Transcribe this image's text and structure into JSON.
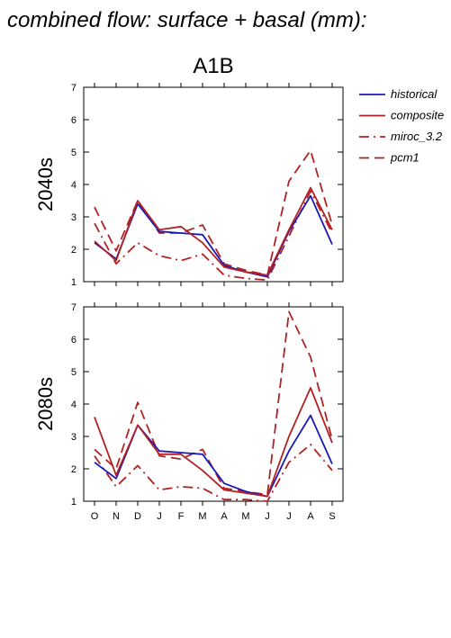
{
  "title": "combined flow: surface + basal (mm):",
  "subtitle": "A1B",
  "months": [
    "O",
    "N",
    "D",
    "J",
    "F",
    "M",
    "A",
    "M",
    "J",
    "J",
    "A",
    "S"
  ],
  "legend": [
    {
      "key": "historical",
      "label": "historical",
      "color": "#1a1ab8",
      "dash": "solid"
    },
    {
      "key": "composite",
      "label": "composite",
      "color": "#b22222",
      "dash": "solid"
    },
    {
      "key": "miroc",
      "label": "miroc_3.2",
      "color": "#b22222",
      "dash": "dashdot"
    },
    {
      "key": "pcm1",
      "label": "pcm1",
      "color": "#b22222",
      "dash": "dashed"
    }
  ],
  "chart_data": [
    {
      "type": "line",
      "title": "2040s",
      "ylim": [
        1,
        7
      ],
      "yticks": [
        1,
        2,
        3,
        4,
        5,
        6,
        7
      ],
      "categories": [
        "O",
        "N",
        "D",
        "J",
        "F",
        "M",
        "A",
        "M",
        "J",
        "J",
        "A",
        "S"
      ],
      "series": [
        {
          "name": "historical",
          "values": [
            2.2,
            1.7,
            3.4,
            2.55,
            2.5,
            2.45,
            1.5,
            1.3,
            1.15,
            2.55,
            3.65,
            2.15
          ]
        },
        {
          "name": "composite",
          "values": [
            2.25,
            1.65,
            3.5,
            2.6,
            2.7,
            2.2,
            1.45,
            1.3,
            1.2,
            2.6,
            3.9,
            2.6
          ]
        },
        {
          "name": "miroc_3.2",
          "values": [
            2.8,
            1.55,
            2.2,
            1.8,
            1.65,
            1.85,
            1.2,
            1.1,
            1.05,
            2.4,
            3.8,
            2.5
          ]
        },
        {
          "name": "pcm1",
          "values": [
            3.3,
            1.95,
            3.5,
            2.5,
            2.5,
            2.75,
            1.55,
            1.35,
            1.2,
            4.1,
            5.05,
            2.75
          ]
        }
      ]
    },
    {
      "type": "line",
      "title": "2080s",
      "ylim": [
        1,
        7
      ],
      "yticks": [
        1,
        2,
        3,
        4,
        5,
        6,
        7
      ],
      "categories": [
        "O",
        "N",
        "D",
        "J",
        "F",
        "M",
        "A",
        "M",
        "J",
        "J",
        "A",
        "S"
      ],
      "series": [
        {
          "name": "historical",
          "values": [
            2.2,
            1.7,
            3.35,
            2.55,
            2.5,
            2.45,
            1.55,
            1.3,
            1.15,
            2.55,
            3.65,
            2.15
          ]
        },
        {
          "name": "composite",
          "values": [
            3.6,
            1.8,
            3.35,
            2.45,
            2.45,
            1.95,
            1.35,
            1.25,
            1.15,
            3.0,
            4.5,
            2.8
          ]
        },
        {
          "name": "miroc_3.2",
          "values": [
            2.4,
            1.45,
            2.1,
            1.35,
            1.45,
            1.4,
            1.05,
            1.05,
            1.0,
            2.2,
            2.75,
            1.95
          ]
        },
        {
          "name": "pcm1",
          "values": [
            2.6,
            2.0,
            4.05,
            2.4,
            2.3,
            2.6,
            1.4,
            1.3,
            1.2,
            6.85,
            5.45,
            2.9
          ]
        }
      ]
    }
  ]
}
